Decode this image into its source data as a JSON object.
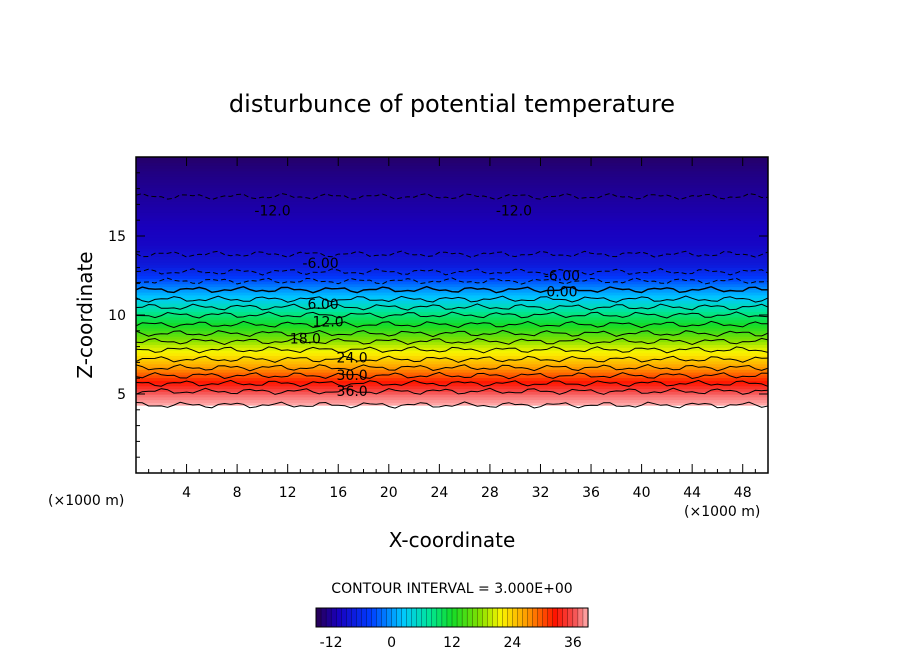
{
  "chart_data": {
    "type": "heatmap",
    "title": "disturbunce of potential temperature",
    "xlabel": "X-coordinate",
    "ylabel": "Z-coordinate",
    "x_unit": "(×1000 m)",
    "z_unit": "(×1000 m)",
    "xlim": [
      0,
      50
    ],
    "ylim": [
      0,
      20
    ],
    "x_ticks": [
      4,
      8,
      12,
      16,
      20,
      24,
      28,
      32,
      36,
      40,
      44,
      48
    ],
    "y_ticks": [
      5,
      10,
      15
    ],
    "ground_level": 4.3,
    "contour_interval_text": "CONTOUR INTERVAL = 3.000E+00",
    "contour_interval": 3,
    "colorbar": {
      "min": -15,
      "max": 39,
      "ticks": [
        -12,
        0,
        12,
        24,
        36
      ]
    },
    "contour_labels": [
      {
        "text": "-12.0",
        "x": 10.8,
        "z": 16.6
      },
      {
        "text": "-12.0",
        "x": 29.9,
        "z": 16.6
      },
      {
        "text": "-6.00",
        "x": 14.6,
        "z": 13.3
      },
      {
        "text": "-6.00",
        "x": 33.7,
        "z": 12.5
      },
      {
        "text": "0.00",
        "x": 33.7,
        "z": 11.5
      },
      {
        "text": "6.00",
        "x": 14.8,
        "z": 10.7
      },
      {
        "text": "12.0",
        "x": 15.2,
        "z": 9.6
      },
      {
        "text": "18.0",
        "x": 13.4,
        "z": 8.5
      },
      {
        "text": "24.0",
        "x": 17.1,
        "z": 7.3
      },
      {
        "text": "30.0",
        "x": 17.1,
        "z": 6.2
      },
      {
        "text": "36.0",
        "x": 17.1,
        "z": 5.2
      }
    ],
    "profile": [
      {
        "z": 4.3,
        "theta": 39
      },
      {
        "z": 5.0,
        "theta": 37
      },
      {
        "z": 6.0,
        "theta": 31
      },
      {
        "z": 7.0,
        "theta": 25
      },
      {
        "z": 8.0,
        "theta": 20
      },
      {
        "z": 9.0,
        "theta": 14
      },
      {
        "z": 10.0,
        "theta": 9
      },
      {
        "z": 11.0,
        "theta": 3
      },
      {
        "z": 11.8,
        "theta": -1
      },
      {
        "z": 12.5,
        "theta": -5
      },
      {
        "z": 13.2,
        "theta": -8
      },
      {
        "z": 14.5,
        "theta": -10
      },
      {
        "z": 16.0,
        "theta": -11
      },
      {
        "z": 17.5,
        "theta": -12
      },
      {
        "z": 19.0,
        "theta": -13
      },
      {
        "z": 20.0,
        "theta": -14
      }
    ]
  }
}
